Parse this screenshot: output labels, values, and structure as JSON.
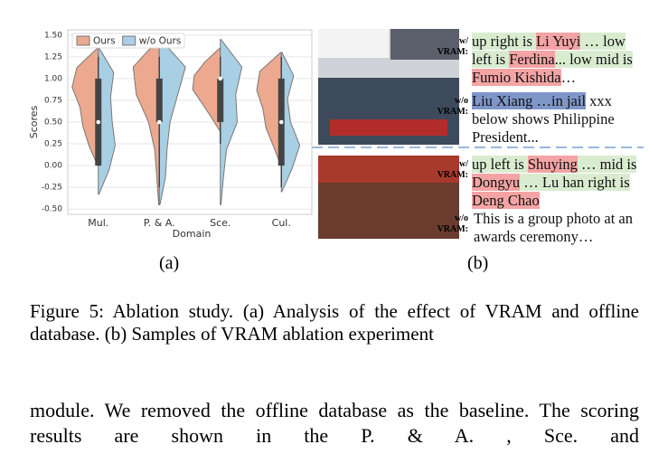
{
  "chart_data": {
    "type": "violin",
    "xlabel": "Domain",
    "ylabel": "Scores",
    "legend": "upper left",
    "grid": true,
    "categories": [
      "Mul.",
      "P. & A.",
      "Sce.",
      "Cul."
    ],
    "ylim": [
      -0.56,
      1.56
    ],
    "yticks": [
      {
        "value": 1.5,
        "label": "1.50"
      },
      {
        "value": 1.25,
        "label": "1.25"
      },
      {
        "value": 1,
        "label": "1.00"
      },
      {
        "value": 0.75,
        "label": "0.75"
      },
      {
        "value": 0.5,
        "label": "0.50"
      },
      {
        "value": 0.25,
        "label": "0.25"
      },
      {
        "value": 0,
        "label": "0.00"
      },
      {
        "value": -0.25,
        "label": "-0.25"
      },
      {
        "value": -0.5,
        "label": "-0.50"
      }
    ],
    "series": [
      {
        "name": "Ours",
        "color": "#eca98f",
        "ranges": [
          [
            0,
            1.35
          ],
          [
            -0.45,
            1.45
          ],
          [
            0.4,
            1.35
          ],
          [
            0,
            1.3
          ]
        ],
        "density": [
          [
            0.02,
            0.3,
            0.5,
            0.6,
            0.85,
            0.7,
            0.03
          ],
          [
            0.02,
            0.08,
            0.15,
            0.35,
            0.75,
            0.85,
            0.03
          ],
          [
            0.02,
            0.3,
            0.6,
            0.9,
            0.85,
            0.5,
            0.02
          ],
          [
            0.02,
            0.25,
            0.5,
            0.6,
            0.8,
            0.7,
            0.02
          ]
        ]
      },
      {
        "name": "w/o Ours",
        "color": "#a9cfe4",
        "ranges": [
          [
            -0.33,
            1.35
          ],
          [
            -0.45,
            1.45
          ],
          [
            -0.45,
            1.45
          ],
          [
            -0.3,
            1.3
          ]
        ],
        "density": [
          [
            0.02,
            0.35,
            0.55,
            0.45,
            0.4,
            0.5,
            0.03
          ],
          [
            0.02,
            0.2,
            0.25,
            0.35,
            0.6,
            0.85,
            0.05
          ],
          [
            0.02,
            0.1,
            0.2,
            0.55,
            0.5,
            0.7,
            0.02
          ],
          [
            0.02,
            0.35,
            0.6,
            0.3,
            0.2,
            0.4,
            0.02
          ]
        ]
      }
    ],
    "box": [
      [
        0,
        0,
        0.5,
        1,
        1.25
      ],
      [
        -0.25,
        0.5,
        0.5,
        1,
        1.25
      ],
      [
        0.25,
        0.5,
        1,
        1,
        1.25
      ],
      [
        -0.25,
        0,
        0.5,
        1,
        1.25
      ]
    ]
  },
  "panel_labels": [
    "(a)",
    "(b)"
  ],
  "samples": [
    {
      "label": "w/ VRAM:",
      "segments": [
        {
          "text": "up right is ",
          "hl": "green"
        },
        {
          "text": "Li Yuyi",
          "hl": "red"
        },
        {
          "text": " … low left is ",
          "hl": "green"
        },
        {
          "text": "Ferdina",
          "hl": "red"
        },
        {
          "text": "... low mid is ",
          "hl": "green"
        },
        {
          "text": "Fumio Kishida",
          "hl": "red"
        },
        {
          "text": "…"
        }
      ]
    },
    {
      "label": "w/o VRAM:",
      "segments": [
        {
          "text": "Liu Xiang …in jail",
          "hl": "blue"
        },
        {
          "text": " xxx below shows Philippine President..."
        }
      ]
    },
    {
      "label": "w/ VRAM:",
      "segments": [
        {
          "text": "up left is ",
          "hl": "green"
        },
        {
          "text": "Shuying",
          "hl": "red"
        },
        {
          "text": " … mid is ",
          "hl": "green"
        },
        {
          "text": "Dongyu",
          "hl": "red"
        },
        {
          "text": " … Lu han right is ",
          "hl": "green"
        },
        {
          "text": "Deng Chao",
          "hl": "red"
        }
      ]
    },
    {
      "label": "w/o VRAM:",
      "segments": [
        {
          "text": "This is a group photo at an awards ceremony…"
        }
      ]
    }
  ],
  "caption": "Figure 5: Ablation study. (a) Analysis of the effect of VRAM and offline database. (b) Samples of VRAM ablation experiment",
  "body": "module. We removed the offline database as the baseline. The scoring results are shown in the P. & A. , Sce. and"
}
